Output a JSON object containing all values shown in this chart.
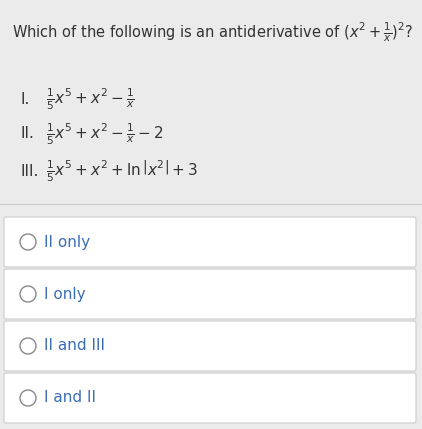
{
  "background_color": "#ebebeb",
  "panel_bg": "#f5f5f5",
  "option_box_color": "#ffffff",
  "option_border_color": "#cccccc",
  "text_color": "#333333",
  "choice_text_color": "#3a6eb5",
  "circle_color": "#888888",
  "title_line1": "Which of the following is an antiderivative of ",
  "title_math": "$(x^2+\\frac{1}{x})^2$?",
  "items": [
    {
      "label": "I.",
      "formula": "$\\frac{1}{5}x^5+x^2-\\frac{1}{x}$"
    },
    {
      "label": "II.",
      "formula": "$\\frac{1}{5}x^5+x^2-\\frac{1}{x}-2$"
    },
    {
      "label": "III.",
      "formula": "$\\frac{1}{5}x^5+x^2+\\ln\\left|x^2\\right|+3$"
    }
  ],
  "choices": [
    "II only",
    "I only",
    "II and III",
    "I and II"
  ],
  "title_fontsize": 10.5,
  "item_fontsize": 11,
  "choice_fontsize": 11
}
